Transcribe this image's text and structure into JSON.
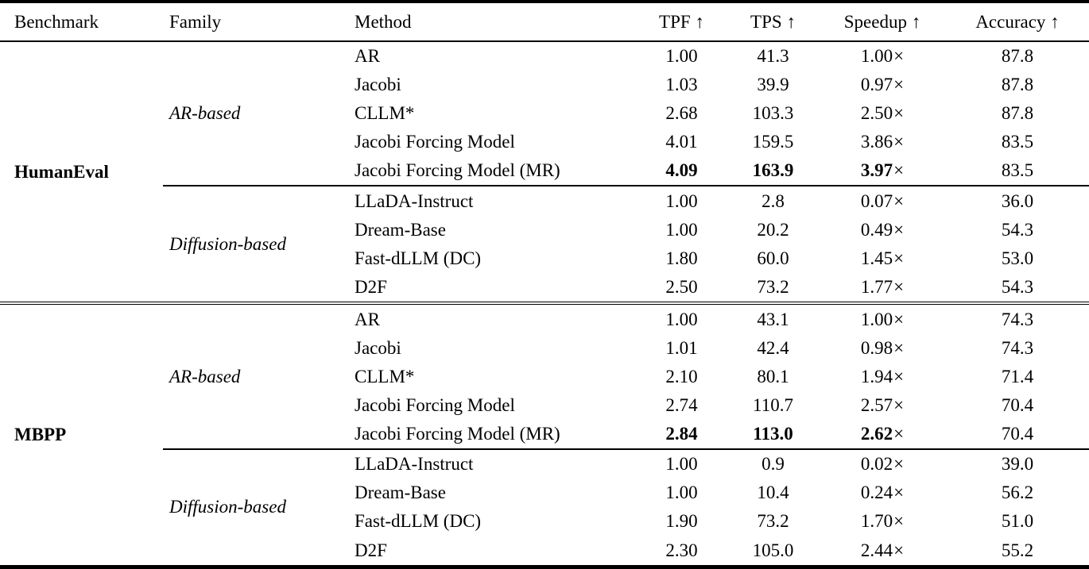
{
  "times_symbol": "×",
  "table": {
    "headers": [
      "Benchmark",
      "Family",
      "Method",
      "TPF ↑",
      "TPS ↑",
      "Speedup ↑",
      "Accuracy ↑"
    ],
    "sections": [
      {
        "benchmark": "HumanEval",
        "groups": [
          {
            "family": "AR-based",
            "rows": [
              {
                "method": "AR",
                "tpf": "1.00",
                "tps": "41.3",
                "speedup": "1.00",
                "accuracy": "87.8",
                "bold": false
              },
              {
                "method": "Jacobi",
                "tpf": "1.03",
                "tps": "39.9",
                "speedup": "0.97",
                "accuracy": "87.8",
                "bold": false
              },
              {
                "method": "CLLM*",
                "tpf": "2.68",
                "tps": "103.3",
                "speedup": "2.50",
                "accuracy": "87.8",
                "bold": false
              },
              {
                "method": "Jacobi Forcing Model",
                "tpf": "4.01",
                "tps": "159.5",
                "speedup": "3.86",
                "accuracy": "83.5",
                "bold": false
              },
              {
                "method": "Jacobi Forcing Model (MR)",
                "tpf": "4.09",
                "tps": "163.9",
                "speedup": "3.97",
                "accuracy": "83.5",
                "bold": true
              }
            ]
          },
          {
            "family": "Diffusion-based",
            "rows": [
              {
                "method": "LLaDA-Instruct",
                "tpf": "1.00",
                "tps": "2.8",
                "speedup": "0.07",
                "accuracy": "36.0",
                "bold": false
              },
              {
                "method": "Dream-Base",
                "tpf": "1.00",
                "tps": "20.2",
                "speedup": "0.49",
                "accuracy": "54.3",
                "bold": false
              },
              {
                "method": "Fast-dLLM (DC)",
                "tpf": "1.80",
                "tps": "60.0",
                "speedup": "1.45",
                "accuracy": "53.0",
                "bold": false
              },
              {
                "method": "D2F",
                "tpf": "2.50",
                "tps": "73.2",
                "speedup": "1.77",
                "accuracy": "54.3",
                "bold": false
              }
            ]
          }
        ]
      },
      {
        "benchmark": "MBPP",
        "groups": [
          {
            "family": "AR-based",
            "rows": [
              {
                "method": "AR",
                "tpf": "1.00",
                "tps": "43.1",
                "speedup": "1.00",
                "accuracy": "74.3",
                "bold": false
              },
              {
                "method": "Jacobi",
                "tpf": "1.01",
                "tps": "42.4",
                "speedup": "0.98",
                "accuracy": "74.3",
                "bold": false
              },
              {
                "method": "CLLM*",
                "tpf": "2.10",
                "tps": "80.1",
                "speedup": "1.94",
                "accuracy": "71.4",
                "bold": false
              },
              {
                "method": "Jacobi Forcing Model",
                "tpf": "2.74",
                "tps": "110.7",
                "speedup": "2.57",
                "accuracy": "70.4",
                "bold": false
              },
              {
                "method": "Jacobi Forcing Model (MR)",
                "tpf": "2.84",
                "tps": "113.0",
                "speedup": "2.62",
                "accuracy": "70.4",
                "bold": true
              }
            ]
          },
          {
            "family": "Diffusion-based",
            "rows": [
              {
                "method": "LLaDA-Instruct",
                "tpf": "1.00",
                "tps": "0.9",
                "speedup": "0.02",
                "accuracy": "39.0",
                "bold": false
              },
              {
                "method": "Dream-Base",
                "tpf": "1.00",
                "tps": "10.4",
                "speedup": "0.24",
                "accuracy": "56.2",
                "bold": false
              },
              {
                "method": "Fast-dLLM (DC)",
                "tpf": "1.90",
                "tps": "73.2",
                "speedup": "1.70",
                "accuracy": "51.0",
                "bold": false
              },
              {
                "method": "D2F",
                "tpf": "2.30",
                "tps": "105.0",
                "speedup": "2.44",
                "accuracy": "55.2",
                "bold": false
              }
            ]
          }
        ]
      }
    ]
  }
}
